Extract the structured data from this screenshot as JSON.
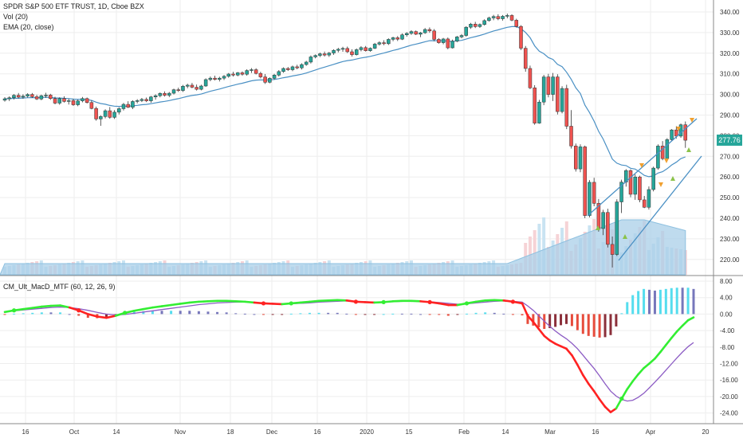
{
  "legend": {
    "title": "SPDR S&P 500 ETF TRUST, 1D, Cboe BZX",
    "vol": "Vol (20)",
    "ema": "EMA (20, close)",
    "macd": "CM_Ult_MacD_MTF (60, 12, 26, 9)"
  },
  "last_price": "277.76",
  "colors": {
    "up": "#26a69a",
    "down": "#ef5350",
    "ema": "#4a90c4",
    "macd_up": "#33ee33",
    "macd_down": "#ff2222",
    "signal": "#8c5cc4",
    "volume": "#a9cfe8",
    "grid": "#eeeeee",
    "pricetag": "#26a69a"
  },
  "chart_data": [
    {
      "type": "candlestick",
      "title": "SPDR S&P 500 ETF TRUST, 1D, Cboe BZX",
      "x_tick_labels": [
        "16",
        "Oct",
        "14",
        "Nov",
        "18",
        "Dec",
        "16",
        "2020",
        "15",
        "Feb",
        "14",
        "Mar",
        "16",
        "Apr",
        "20"
      ],
      "y_tick_labels": [
        "220.00",
        "230.00",
        "240.00",
        "250.00",
        "260.00",
        "270.00",
        "280.00",
        "290.00",
        "300.00",
        "310.00",
        "320.00",
        "330.00",
        "340.00"
      ],
      "ylim": [
        215,
        344
      ],
      "candles": [
        [
          297.2,
          298.7,
          296.5,
          297.9
        ],
        [
          297.9,
          299.1,
          296.8,
          298.4
        ],
        [
          298.4,
          300.2,
          297.6,
          299.6
        ],
        [
          299.6,
          300.7,
          298.1,
          298.7
        ],
        [
          298.7,
          300.1,
          297.9,
          299.2
        ],
        [
          299.2,
          300.6,
          298.5,
          300.0
        ],
        [
          300.0,
          300.7,
          298.3,
          298.9
        ],
        [
          298.9,
          299.8,
          297.3,
          297.8
        ],
        [
          297.8,
          299.9,
          297.2,
          299.4
        ],
        [
          299.4,
          300.8,
          298.4,
          299.7
        ],
        [
          299.7,
          300.3,
          297.4,
          298.0
        ],
        [
          298.0,
          298.9,
          295.2,
          295.8
        ],
        [
          295.8,
          298.6,
          295.0,
          298.0
        ],
        [
          298.0,
          299.1,
          296.1,
          296.6
        ],
        [
          296.6,
          297.9,
          295.1,
          297.0
        ],
        [
          297.0,
          297.9,
          294.5,
          295.0
        ],
        [
          295.0,
          297.5,
          294.3,
          296.9
        ],
        [
          296.9,
          298.8,
          296.2,
          298.0
        ],
        [
          298.0,
          298.5,
          295.6,
          296.1
        ],
        [
          296.1,
          297.1,
          292.8,
          293.2
        ],
        [
          293.2,
          294.1,
          287.3,
          288.1
        ],
        [
          288.1,
          289.9,
          284.8,
          289.3
        ],
        [
          289.3,
          292.8,
          288.4,
          292.1
        ],
        [
          292.1,
          293.9,
          288.2,
          288.9
        ],
        [
          288.9,
          292.4,
          288.1,
          291.4
        ],
        [
          291.4,
          293.8,
          290.3,
          293.1
        ],
        [
          293.1,
          295.9,
          292.2,
          295.2
        ],
        [
          295.2,
          296.7,
          293.4,
          293.8
        ],
        [
          293.8,
          297.2,
          292.9,
          296.6
        ],
        [
          296.6,
          297.7,
          295.7,
          297.0
        ],
        [
          297.0,
          298.3,
          296.3,
          297.6
        ],
        [
          297.6,
          298.5,
          296.3,
          296.9
        ],
        [
          296.9,
          299.3,
          296.0,
          298.8
        ],
        [
          298.8,
          300.1,
          297.5,
          299.4
        ],
        [
          299.4,
          301.0,
          298.6,
          300.5
        ],
        [
          300.5,
          301.5,
          299.0,
          299.6
        ],
        [
          299.6,
          301.2,
          298.7,
          300.6
        ],
        [
          300.6,
          302.8,
          300.0,
          302.3
        ],
        [
          302.3,
          303.3,
          301.2,
          301.9
        ],
        [
          301.9,
          304.6,
          301.2,
          304.0
        ],
        [
          304.0,
          305.2,
          303.0,
          304.5
        ],
        [
          304.5,
          305.6,
          303.0,
          303.5
        ],
        [
          303.5,
          304.8,
          301.9,
          302.5
        ],
        [
          302.5,
          304.7,
          302.0,
          304.1
        ],
        [
          304.1,
          307.8,
          303.7,
          307.2
        ],
        [
          307.2,
          308.7,
          306.4,
          307.9
        ],
        [
          307.9,
          309.1,
          306.8,
          307.3
        ],
        [
          307.3,
          308.6,
          306.3,
          307.9
        ],
        [
          307.9,
          309.4,
          307.0,
          308.8
        ],
        [
          308.8,
          310.4,
          308.1,
          309.9
        ],
        [
          309.9,
          311.0,
          308.7,
          309.4
        ],
        [
          309.4,
          310.9,
          308.8,
          310.5
        ],
        [
          310.5,
          311.2,
          309.1,
          309.8
        ],
        [
          309.8,
          312.2,
          309.1,
          311.6
        ],
        [
          311.6,
          312.8,
          310.4,
          312.0
        ],
        [
          312.0,
          312.7,
          309.7,
          310.2
        ],
        [
          310.2,
          311.0,
          307.8,
          308.5
        ],
        [
          308.5,
          309.9,
          305.1,
          305.9
        ],
        [
          305.9,
          308.3,
          305.4,
          307.8
        ],
        [
          307.8,
          310.0,
          307.2,
          309.4
        ],
        [
          309.4,
          311.8,
          308.7,
          311.1
        ],
        [
          311.1,
          313.1,
          310.5,
          312.6
        ],
        [
          312.6,
          313.3,
          311.4,
          312.0
        ],
        [
          312.0,
          314.0,
          311.3,
          313.4
        ],
        [
          313.4,
          314.4,
          312.2,
          312.9
        ],
        [
          312.9,
          315.1,
          312.1,
          314.5
        ],
        [
          314.5,
          316.3,
          313.9,
          315.7
        ],
        [
          315.7,
          318.9,
          315.0,
          318.2
        ],
        [
          318.2,
          319.4,
          317.5,
          318.9
        ],
        [
          318.9,
          320.3,
          318.1,
          319.7
        ],
        [
          319.7,
          320.8,
          318.4,
          319.1
        ],
        [
          319.1,
          320.6,
          318.2,
          320.1
        ],
        [
          320.1,
          321.9,
          319.2,
          321.4
        ],
        [
          321.4,
          322.6,
          320.4,
          321.9
        ],
        [
          321.9,
          323.1,
          320.7,
          322.3
        ],
        [
          322.3,
          323.2,
          320.1,
          320.7
        ],
        [
          320.7,
          321.9,
          318.4,
          319.3
        ],
        [
          319.3,
          322.3,
          318.9,
          321.7
        ],
        [
          321.7,
          323.4,
          320.9,
          322.7
        ],
        [
          322.7,
          323.5,
          320.8,
          321.2
        ],
        [
          321.2,
          322.8,
          320.7,
          322.4
        ],
        [
          322.4,
          325.0,
          322.0,
          324.4
        ],
        [
          324.4,
          325.8,
          323.7,
          325.1
        ],
        [
          325.1,
          326.3,
          323.9,
          324.6
        ],
        [
          324.6,
          327.2,
          324.0,
          326.7
        ],
        [
          326.7,
          328.0,
          325.8,
          327.5
        ],
        [
          327.5,
          328.3,
          325.9,
          326.8
        ],
        [
          326.8,
          329.6,
          326.4,
          328.9
        ],
        [
          328.9,
          330.2,
          328.0,
          329.6
        ],
        [
          329.6,
          331.1,
          328.9,
          330.5
        ],
        [
          330.5,
          331.0,
          328.8,
          329.2
        ],
        [
          329.2,
          330.3,
          327.8,
          329.9
        ],
        [
          329.9,
          332.2,
          329.4,
          331.5
        ],
        [
          331.5,
          332.5,
          329.9,
          330.8
        ],
        [
          330.8,
          331.7,
          325.8,
          326.7
        ],
        [
          326.7,
          327.3,
          324.6,
          325.1
        ],
        [
          325.1,
          327.4,
          324.3,
          326.9
        ],
        [
          326.9,
          327.6,
          321.9,
          322.6
        ],
        [
          322.6,
          326.6,
          322.3,
          325.8
        ],
        [
          325.8,
          328.4,
          325.3,
          327.9
        ],
        [
          327.9,
          329.3,
          327.2,
          328.6
        ],
        [
          328.6,
          333.1,
          328.0,
          332.6
        ],
        [
          332.6,
          334.7,
          331.8,
          334.1
        ],
        [
          334.1,
          335.2,
          332.2,
          332.9
        ],
        [
          332.9,
          334.4,
          332.3,
          333.9
        ],
        [
          333.9,
          336.4,
          333.4,
          335.8
        ],
        [
          335.8,
          337.7,
          335.3,
          337.1
        ],
        [
          337.1,
          338.6,
          336.0,
          337.8
        ],
        [
          337.8,
          338.9,
          336.0,
          336.7
        ],
        [
          336.7,
          338.5,
          335.8,
          337.9
        ],
        [
          337.9,
          339.2,
          336.9,
          338.3
        ],
        [
          338.3,
          338.9,
          335.5,
          336.0
        ],
        [
          336.0,
          336.7,
          332.4,
          333.0
        ],
        [
          333.0,
          333.6,
          321.5,
          322.4
        ],
        [
          322.4,
          323.5,
          311.0,
          312.6
        ],
        [
          312.6,
          314.0,
          302.6,
          303.2
        ],
        [
          303.2,
          304.5,
          285.3,
          286.1
        ],
        [
          286.1,
          297.4,
          285.8,
          296.3
        ],
        [
          296.3,
          309.5,
          294.8,
          308.5
        ],
        [
          308.5,
          310.0,
          298.6,
          300.0
        ],
        [
          300.0,
          310.4,
          296.8,
          308.5
        ],
        [
          308.5,
          309.8,
          290.3,
          291.7
        ],
        [
          291.7,
          304.0,
          290.8,
          302.9
        ],
        [
          302.9,
          304.7,
          283.2,
          284.6
        ],
        [
          284.6,
          292.4,
          273.8,
          275.0
        ],
        [
          275.0,
          276.2,
          262.6,
          263.9
        ],
        [
          263.9,
          275.8,
          262.3,
          274.6
        ],
        [
          274.6,
          275.2,
          240.0,
          241.3
        ],
        [
          241.3,
          258.5,
          240.4,
          257.4
        ],
        [
          257.4,
          259.6,
          245.8,
          247.2
        ],
        [
          247.2,
          249.3,
          233.5,
          235.0
        ],
        [
          235.0,
          244.1,
          231.8,
          242.8
        ],
        [
          242.8,
          244.6,
          225.8,
          227.3
        ],
        [
          227.3,
          231.1,
          216.1,
          222.4
        ],
        [
          222.4,
          249.2,
          221.7,
          247.9
        ],
        [
          247.9,
          258.7,
          242.5,
          257.5
        ],
        [
          257.5,
          263.8,
          255.3,
          263.1
        ],
        [
          263.1,
          263.7,
          250.2,
          251.6
        ],
        [
          251.6,
          261.3,
          248.9,
          260.0
        ],
        [
          260.0,
          260.6,
          247.7,
          248.9
        ],
        [
          248.9,
          250.8,
          244.9,
          245.3
        ],
        [
          245.3,
          255.4,
          244.2,
          253.9
        ],
        [
          253.9,
          265.0,
          253.0,
          264.3
        ],
        [
          264.3,
          275.8,
          263.5,
          275.0
        ],
        [
          275.0,
          277.4,
          268.1,
          268.9
        ],
        [
          268.9,
          278.8,
          268.2,
          278.1
        ],
        [
          278.1,
          283.2,
          277.4,
          282.8
        ],
        [
          282.8,
          284.6,
          278.6,
          279.8
        ],
        [
          279.8,
          285.9,
          279.0,
          285.3
        ],
        [
          285.3,
          286.9,
          274.1,
          277.8
        ]
      ],
      "volume": [
        "many daily bars (light blue/pink), elevated in March"
      ],
      "ema20_last_approx": 267,
      "annotations": [
        "triangle up/down markers",
        "rising channel trendlines"
      ]
    },
    {
      "type": "line",
      "title": "CM_Ult_MacD_MTF (60, 12, 26, 9)",
      "y_tick_labels": [
        "8.00",
        "4.00",
        "0.00",
        "-4.00",
        "-8.00",
        "-12.00",
        "-16.00",
        "-20.00",
        "-24.00"
      ],
      "ylim": [
        -25.5,
        8.5
      ],
      "series": [
        {
          "values": [
            0.5,
            0.9,
            1.2,
            1.5,
            1.8,
            2.0,
            2.1,
            1.6,
            0.9,
            0.0,
            -0.6,
            -0.9,
            -0.4,
            0.3,
            0.8,
            1.2,
            1.6,
            1.9,
            2.2,
            2.5,
            2.8,
            3.0,
            3.1,
            3.2,
            3.2,
            3.1,
            3.0,
            2.8,
            2.6,
            2.5,
            2.4,
            2.6,
            2.8,
            3.0,
            3.2,
            3.3,
            3.4,
            3.3,
            3.0,
            2.9,
            2.8,
            2.9,
            3.1,
            3.2,
            3.2,
            3.1,
            2.9,
            2.6,
            2.2,
            2.2,
            2.6,
            3.0,
            3.3,
            3.4,
            3.3,
            3.0,
            2.6,
            -0.4,
            -1.9,
            -3.6,
            -5.3,
            -6.4,
            -7.2,
            -7.8,
            -8.4,
            -10.0,
            -12.3,
            -14.8,
            -16.9,
            -18.7,
            -20.7,
            -22.5,
            -23.8,
            -22.9,
            -20.5,
            -18.2,
            -16.3,
            -14.6,
            -13.1,
            -12.0,
            -10.8,
            -9.2,
            -7.5,
            -5.8,
            -4.2,
            -2.8,
            -1.5,
            -0.8
          ]
        },
        {
          "values": [
            0.6,
            0.8,
            1.0,
            1.2,
            1.4,
            1.6,
            1.7,
            1.6,
            1.3,
            0.9,
            0.4,
            0.0,
            -0.2,
            -0.1,
            0.2,
            0.5,
            0.8,
            1.1,
            1.4,
            1.7,
            2.0,
            2.3,
            2.5,
            2.7,
            2.8,
            2.9,
            2.9,
            2.8,
            2.7,
            2.6,
            2.5,
            2.5,
            2.6,
            2.7,
            2.9,
            3.0,
            3.1,
            3.2,
            3.1,
            3.0,
            2.9,
            2.9,
            3.0,
            3.1,
            3.1,
            3.1,
            3.0,
            2.8,
            2.6,
            2.4,
            2.5,
            2.7,
            2.9,
            3.1,
            3.2,
            3.1,
            2.9,
            2.0,
            0.9,
            -0.4,
            -1.7,
            -3.0,
            -4.1,
            -5.1,
            -6.0,
            -7.1,
            -8.4,
            -10.0,
            -11.6,
            -13.2,
            -15.0,
            -16.9,
            -18.7,
            -19.9,
            -20.7,
            -21.1,
            -20.9,
            -20.2,
            -19.2,
            -17.9,
            -16.5,
            -15.1,
            -13.6,
            -12.1,
            -10.6,
            -9.2,
            -7.9,
            -6.9
          ]
        }
      ],
      "x_tick_labels": [
        "16",
        "Oct",
        "14",
        "Nov",
        "18",
        "Dec",
        "16",
        "2020",
        "15",
        "Feb",
        "14",
        "Mar",
        "16",
        "Apr",
        "20"
      ]
    }
  ]
}
